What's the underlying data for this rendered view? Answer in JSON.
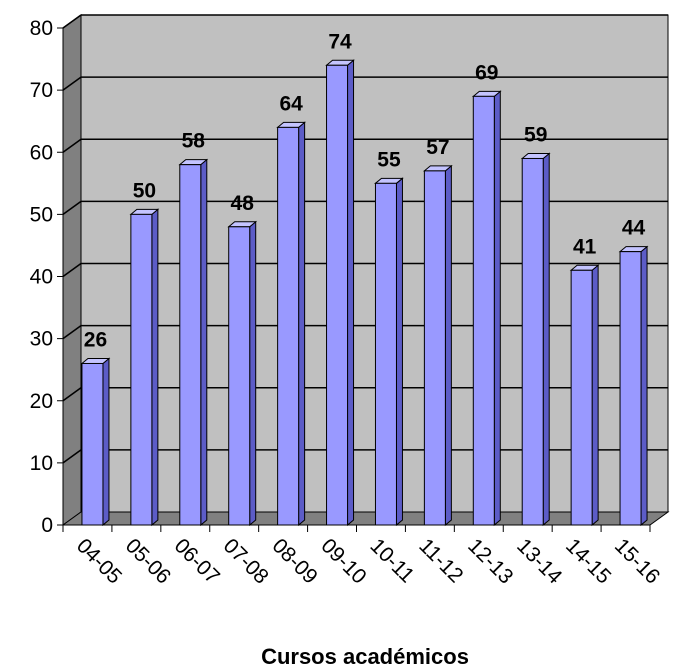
{
  "chart_data": {
    "type": "bar",
    "categories": [
      "04-05",
      "05-06",
      "06-07",
      "07-08",
      "08-09",
      "09-10",
      "10-11",
      "11-12",
      "12-13",
      "13-14",
      "14-15",
      "15-16"
    ],
    "values": [
      26,
      50,
      58,
      48,
      64,
      74,
      55,
      57,
      69,
      59,
      41,
      44
    ],
    "xlabel": "Cursos académicos",
    "ylabel": "",
    "ylim": [
      0,
      80
    ],
    "yticks": [
      0,
      10,
      20,
      30,
      40,
      50,
      60,
      70,
      80
    ],
    "grid": true,
    "legend": "none",
    "style": "3d-column",
    "colors": {
      "bar_front": "#9999ff",
      "bar_side": "#5c5cc7",
      "bar_top": "#c4c4ff",
      "back_wall": "#c0c0c0",
      "floor": "#808080",
      "grid": "#000000"
    }
  }
}
